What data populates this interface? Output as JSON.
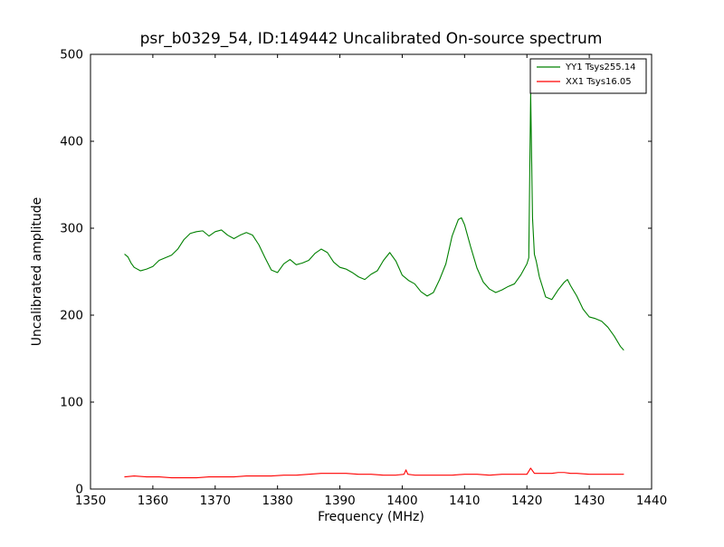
{
  "figure": {
    "kind": "matplotlib-style spectrum plot"
  },
  "chart_data": {
    "type": "line",
    "title": "psr_b0329_54, ID:149442 Uncalibrated On-source spectrum",
    "xlabel": "Frequency (MHz)",
    "ylabel": "Uncalibrated amplitude",
    "xlim": [
      1350,
      1440
    ],
    "ylim": [
      0,
      500
    ],
    "xticks": [
      1350,
      1360,
      1370,
      1380,
      1390,
      1400,
      1410,
      1420,
      1430,
      1440
    ],
    "yticks": [
      0,
      100,
      200,
      300,
      400,
      500
    ],
    "grid": false,
    "legend_position": "upper right",
    "axes_color": "#000000",
    "background_color": "#ffffff",
    "series": [
      {
        "name": "YY1 Tsys255.14",
        "color": "#008000",
        "points": [
          [
            1355.5,
            270
          ],
          [
            1356,
            267
          ],
          [
            1356.5,
            260
          ],
          [
            1357,
            255
          ],
          [
            1358,
            251
          ],
          [
            1359,
            253
          ],
          [
            1360,
            256
          ],
          [
            1361,
            263
          ],
          [
            1362,
            266
          ],
          [
            1363,
            269
          ],
          [
            1364,
            276
          ],
          [
            1365,
            287
          ],
          [
            1366,
            294
          ],
          [
            1367,
            296
          ],
          [
            1368,
            297
          ],
          [
            1369,
            291
          ],
          [
            1370,
            296
          ],
          [
            1371,
            298
          ],
          [
            1372,
            292
          ],
          [
            1373,
            288
          ],
          [
            1374,
            292
          ],
          [
            1375,
            295
          ],
          [
            1376,
            292
          ],
          [
            1377,
            281
          ],
          [
            1378,
            266
          ],
          [
            1379,
            252
          ],
          [
            1380,
            249
          ],
          [
            1381,
            259
          ],
          [
            1382,
            264
          ],
          [
            1383,
            258
          ],
          [
            1384,
            260
          ],
          [
            1385,
            263
          ],
          [
            1386,
            271
          ],
          [
            1387,
            276
          ],
          [
            1388,
            272
          ],
          [
            1389,
            261
          ],
          [
            1390,
            255
          ],
          [
            1391,
            253
          ],
          [
            1392,
            249
          ],
          [
            1393,
            244
          ],
          [
            1394,
            241
          ],
          [
            1395,
            247
          ],
          [
            1396,
            251
          ],
          [
            1397,
            263
          ],
          [
            1398,
            272
          ],
          [
            1399,
            262
          ],
          [
            1400,
            246
          ],
          [
            1401,
            240
          ],
          [
            1402,
            236
          ],
          [
            1403,
            227
          ],
          [
            1404,
            222
          ],
          [
            1405,
            226
          ],
          [
            1406,
            241
          ],
          [
            1407,
            259
          ],
          [
            1408,
            291
          ],
          [
            1409,
            310
          ],
          [
            1409.5,
            312
          ],
          [
            1410,
            304
          ],
          [
            1411,
            278
          ],
          [
            1412,
            254
          ],
          [
            1413,
            238
          ],
          [
            1414,
            230
          ],
          [
            1415,
            226
          ],
          [
            1416,
            229
          ],
          [
            1417,
            233
          ],
          [
            1418,
            236
          ],
          [
            1419,
            246
          ],
          [
            1420,
            259
          ],
          [
            1420.3,
            266
          ],
          [
            1420.6,
            455
          ],
          [
            1420.9,
            312
          ],
          [
            1421.2,
            270
          ],
          [
            1421.5,
            262
          ],
          [
            1422,
            244
          ],
          [
            1423,
            221
          ],
          [
            1424,
            218
          ],
          [
            1425,
            229
          ],
          [
            1426,
            238
          ],
          [
            1426.5,
            241
          ],
          [
            1427,
            234
          ],
          [
            1428,
            222
          ],
          [
            1429,
            207
          ],
          [
            1430,
            198
          ],
          [
            1431,
            196
          ],
          [
            1432,
            193
          ],
          [
            1433,
            186
          ],
          [
            1434,
            176
          ],
          [
            1435,
            164
          ],
          [
            1435.5,
            160
          ]
        ]
      },
      {
        "name": "XX1 Tsys16.05",
        "color": "#ff0000",
        "points": [
          [
            1355.5,
            14
          ],
          [
            1357,
            15
          ],
          [
            1359,
            14
          ],
          [
            1361,
            14
          ],
          [
            1363,
            13
          ],
          [
            1365,
            13
          ],
          [
            1367,
            13
          ],
          [
            1369,
            14
          ],
          [
            1371,
            14
          ],
          [
            1373,
            14
          ],
          [
            1375,
            15
          ],
          [
            1377,
            15
          ],
          [
            1379,
            15
          ],
          [
            1381,
            16
          ],
          [
            1383,
            16
          ],
          [
            1385,
            17
          ],
          [
            1387,
            18
          ],
          [
            1389,
            18
          ],
          [
            1391,
            18
          ],
          [
            1393,
            17
          ],
          [
            1395,
            17
          ],
          [
            1397,
            16
          ],
          [
            1399,
            16
          ],
          [
            1400.3,
            17
          ],
          [
            1400.6,
            22
          ],
          [
            1400.9,
            17
          ],
          [
            1402,
            16
          ],
          [
            1404,
            16
          ],
          [
            1406,
            16
          ],
          [
            1408,
            16
          ],
          [
            1410,
            17
          ],
          [
            1412,
            17
          ],
          [
            1414,
            16
          ],
          [
            1416,
            17
          ],
          [
            1418,
            17
          ],
          [
            1420,
            17
          ],
          [
            1420.6,
            24
          ],
          [
            1421.2,
            18
          ],
          [
            1422,
            18
          ],
          [
            1424,
            18
          ],
          [
            1425,
            19
          ],
          [
            1426,
            19
          ],
          [
            1427,
            18
          ],
          [
            1428,
            18
          ],
          [
            1430,
            17
          ],
          [
            1432,
            17
          ],
          [
            1434,
            17
          ],
          [
            1435.5,
            17
          ]
        ]
      }
    ]
  }
}
